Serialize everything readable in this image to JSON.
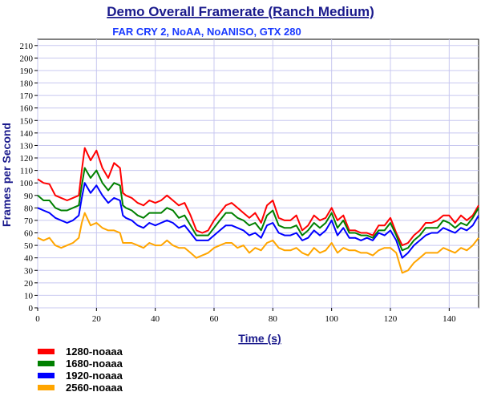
{
  "chart_data": {
    "type": "line",
    "title": "Demo Overall Framerate (Ranch Medium)",
    "subtitle": "FAR CRY 2, NoAA, NoANISO,  GTX 280",
    "xlabel": "Time (s)",
    "ylabel": "Frames per Second",
    "xlim": [
      0,
      150
    ],
    "ylim": [
      0,
      215
    ],
    "xticks": [
      0,
      20,
      40,
      60,
      80,
      100,
      120,
      140
    ],
    "yticks": [
      0,
      10,
      20,
      30,
      40,
      50,
      60,
      70,
      80,
      90,
      100,
      110,
      120,
      130,
      140,
      150,
      160,
      170,
      180,
      190,
      200,
      210
    ],
    "grid": true,
    "legend_position": "bottom-left",
    "x": [
      0,
      2,
      4,
      6,
      8,
      10,
      12,
      14,
      15,
      16,
      18,
      20,
      22,
      24,
      26,
      28,
      29,
      30,
      32,
      34,
      36,
      38,
      40,
      42,
      44,
      46,
      48,
      50,
      52,
      54,
      56,
      58,
      60,
      62,
      64,
      66,
      68,
      70,
      72,
      74,
      76,
      78,
      80,
      82,
      84,
      86,
      88,
      90,
      92,
      94,
      96,
      98,
      100,
      102,
      104,
      106,
      108,
      110,
      112,
      114,
      116,
      118,
      120,
      122,
      124,
      126,
      128,
      130,
      132,
      134,
      136,
      138,
      140,
      142,
      144,
      146,
      148,
      150
    ],
    "series": [
      {
        "name": "1280-noaaa",
        "color": "#ff0000",
        "values": [
          103,
          100,
          99,
          90,
          88,
          86,
          88,
          90,
          110,
          128,
          118,
          126,
          112,
          104,
          116,
          112,
          92,
          90,
          88,
          84,
          82,
          86,
          84,
          86,
          90,
          86,
          82,
          84,
          74,
          62,
          60,
          62,
          70,
          76,
          82,
          84,
          80,
          76,
          72,
          76,
          68,
          82,
          86,
          72,
          70,
          70,
          74,
          62,
          66,
          74,
          70,
          72,
          80,
          70,
          74,
          62,
          62,
          60,
          60,
          58,
          66,
          66,
          72,
          60,
          50,
          52,
          58,
          62,
          68,
          68,
          70,
          74,
          74,
          68,
          74,
          70,
          74,
          82
        ]
      },
      {
        "name": "1680-noaaa",
        "color": "#008000",
        "values": [
          90,
          86,
          86,
          80,
          78,
          78,
          80,
          82,
          98,
          112,
          104,
          110,
          100,
          94,
          100,
          98,
          82,
          80,
          78,
          74,
          72,
          76,
          76,
          76,
          80,
          78,
          72,
          74,
          66,
          58,
          58,
          58,
          64,
          70,
          76,
          76,
          72,
          70,
          66,
          68,
          62,
          74,
          78,
          66,
          64,
          64,
          66,
          58,
          62,
          68,
          64,
          68,
          76,
          64,
          70,
          60,
          60,
          58,
          58,
          56,
          62,
          62,
          68,
          58,
          46,
          48,
          54,
          58,
          64,
          64,
          64,
          70,
          68,
          64,
          68,
          66,
          72,
          80
        ]
      },
      {
        "name": "1920-noaaa",
        "color": "#0000ff",
        "values": [
          80,
          78,
          76,
          72,
          70,
          68,
          70,
          74,
          88,
          100,
          92,
          98,
          90,
          84,
          88,
          86,
          74,
          72,
          70,
          66,
          64,
          68,
          66,
          68,
          70,
          68,
          64,
          66,
          60,
          54,
          54,
          54,
          58,
          62,
          66,
          66,
          64,
          62,
          58,
          60,
          56,
          66,
          68,
          60,
          58,
          58,
          60,
          54,
          56,
          62,
          58,
          62,
          70,
          58,
          64,
          56,
          56,
          54,
          56,
          54,
          60,
          58,
          62,
          54,
          40,
          44,
          50,
          54,
          58,
          60,
          60,
          64,
          62,
          60,
          64,
          62,
          66,
          74
        ]
      },
      {
        "name": "2560-noaaa",
        "color": "#ffa500",
        "values": [
          56,
          54,
          56,
          50,
          48,
          50,
          52,
          56,
          68,
          76,
          66,
          68,
          64,
          62,
          62,
          60,
          52,
          52,
          52,
          50,
          48,
          52,
          50,
          50,
          54,
          50,
          48,
          48,
          44,
          40,
          42,
          44,
          48,
          50,
          52,
          52,
          48,
          50,
          44,
          48,
          46,
          52,
          54,
          48,
          46,
          46,
          48,
          44,
          42,
          48,
          44,
          46,
          52,
          44,
          48,
          46,
          46,
          44,
          44,
          42,
          46,
          48,
          48,
          44,
          28,
          30,
          36,
          40,
          44,
          44,
          44,
          48,
          46,
          44,
          48,
          46,
          50,
          56
        ]
      }
    ]
  }
}
